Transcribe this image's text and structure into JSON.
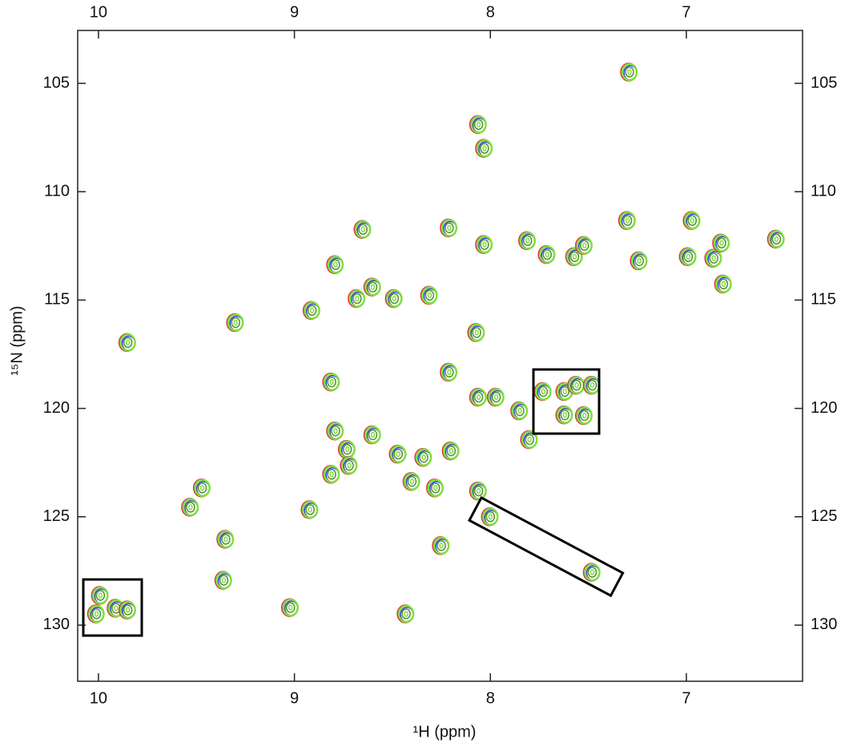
{
  "chart_data": {
    "type": "scatter",
    "x_label": "¹H  (ppm)",
    "y_label": "¹⁵N  (ppm)",
    "xlim": [
      10.106,
      6.407
    ],
    "ylim": [
      132.59,
      102.56
    ],
    "xticks": [
      10,
      9,
      8,
      7
    ],
    "yticks": [
      105,
      110,
      115,
      120,
      125,
      130
    ],
    "colors": [
      "#e0303a",
      "#2a3fd8",
      "#7ee03a"
    ],
    "x": [
      7.29,
      8.06,
      8.03,
      7.81,
      7.71,
      7.57,
      8.03,
      7.3,
      7.24,
      6.97,
      6.99,
      6.86,
      6.82,
      6.54,
      6.81,
      8.21,
      7.52,
      8.79,
      8.65,
      8.6,
      8.68,
      8.49,
      8.31,
      8.91,
      9.3,
      9.85,
      8.07,
      8.21,
      8.81,
      8.06,
      7.97,
      7.85,
      7.73,
      7.62,
      7.56,
      7.48,
      7.62,
      7.52,
      8.79,
      8.6,
      8.73,
      8.72,
      8.47,
      8.34,
      8.2,
      7.8,
      8.81,
      9.47,
      9.53,
      8.92,
      8.4,
      8.06,
      8.28,
      8.0,
      9.35,
      8.25,
      7.48,
      9.36,
      9.02,
      8.43,
      9.91,
      10.01,
      9.85,
      9.99
    ],
    "values": [
      104.48,
      106.9,
      108.0,
      112.26,
      112.9,
      113.0,
      112.44,
      111.33,
      113.19,
      111.33,
      113.0,
      113.07,
      112.37,
      112.19,
      114.26,
      111.67,
      112.48,
      113.37,
      111.74,
      114.4,
      114.93,
      114.93,
      114.78,
      115.48,
      116.04,
      116.96,
      116.5,
      118.33,
      118.78,
      119.48,
      119.48,
      120.11,
      119.22,
      119.22,
      118.93,
      118.93,
      120.3,
      120.33,
      121.04,
      121.22,
      121.89,
      122.63,
      122.11,
      122.26,
      121.96,
      121.44,
      123.04,
      123.67,
      124.56,
      124.67,
      123.37,
      123.81,
      123.67,
      125.0,
      126.04,
      126.33,
      127.56,
      127.93,
      129.19,
      129.48,
      129.22,
      129.48,
      129.3,
      128.63
    ]
  }
}
